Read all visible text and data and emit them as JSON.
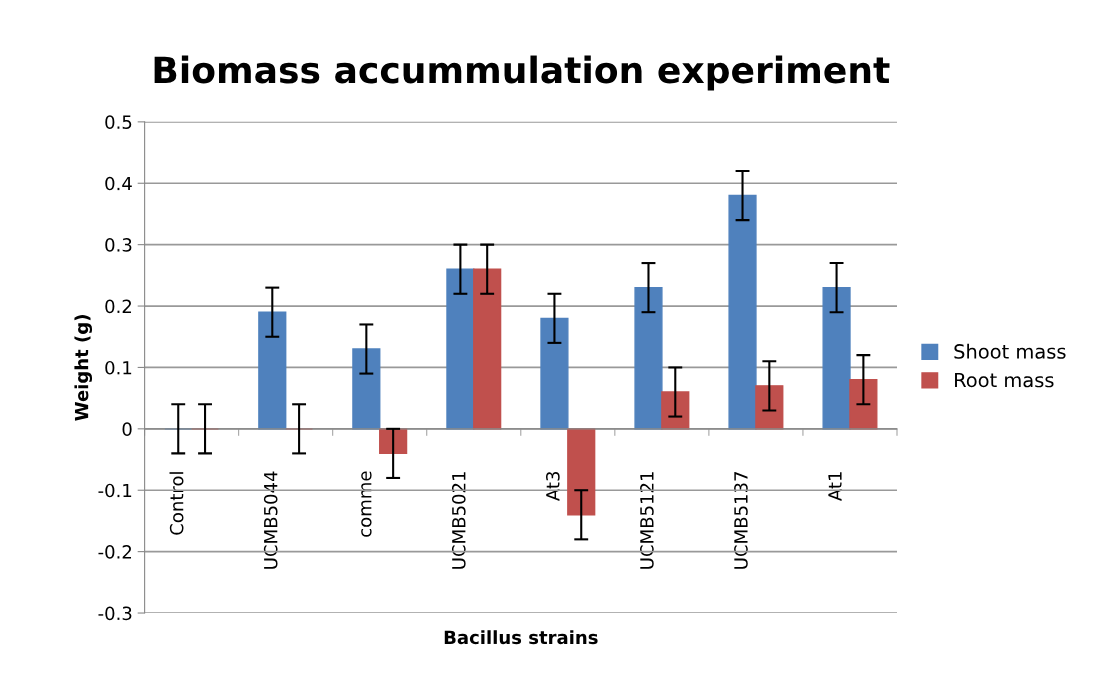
{
  "chart_data": {
    "type": "bar",
    "title": "Biomass accummulation experiment",
    "xlabel": "Bacillus strains",
    "ylabel": "Weight (g)",
    "categories": [
      "Control",
      "UCMB5044",
      "comme",
      "UCMB5021",
      "At3",
      "UCMB5121",
      "UCMB5137",
      "At1"
    ],
    "series": [
      {
        "name": "Shoot mass",
        "color": "#4f81bd",
        "values": [
          0,
          0.19,
          0.13,
          0.26,
          0.18,
          0.23,
          0.38,
          0.23
        ],
        "errors": [
          0.04,
          0.04,
          0.04,
          0.04,
          0.04,
          0.04,
          0.04,
          0.04
        ]
      },
      {
        "name": "Root mass",
        "color": "#c0504d",
        "values": [
          0,
          0,
          -0.04,
          0.26,
          -0.14,
          0.06,
          0.07,
          0.08
        ],
        "errors": [
          0.04,
          0.04,
          0.04,
          0.04,
          0.04,
          0.04,
          0.04,
          0.04
        ]
      }
    ],
    "ylim": [
      -0.3,
      0.5
    ],
    "yticks": [
      -0.3,
      -0.2,
      -0.1,
      0,
      0.1,
      0.2,
      0.3,
      0.4,
      0.5
    ],
    "grid": "y",
    "legend": "right"
  }
}
